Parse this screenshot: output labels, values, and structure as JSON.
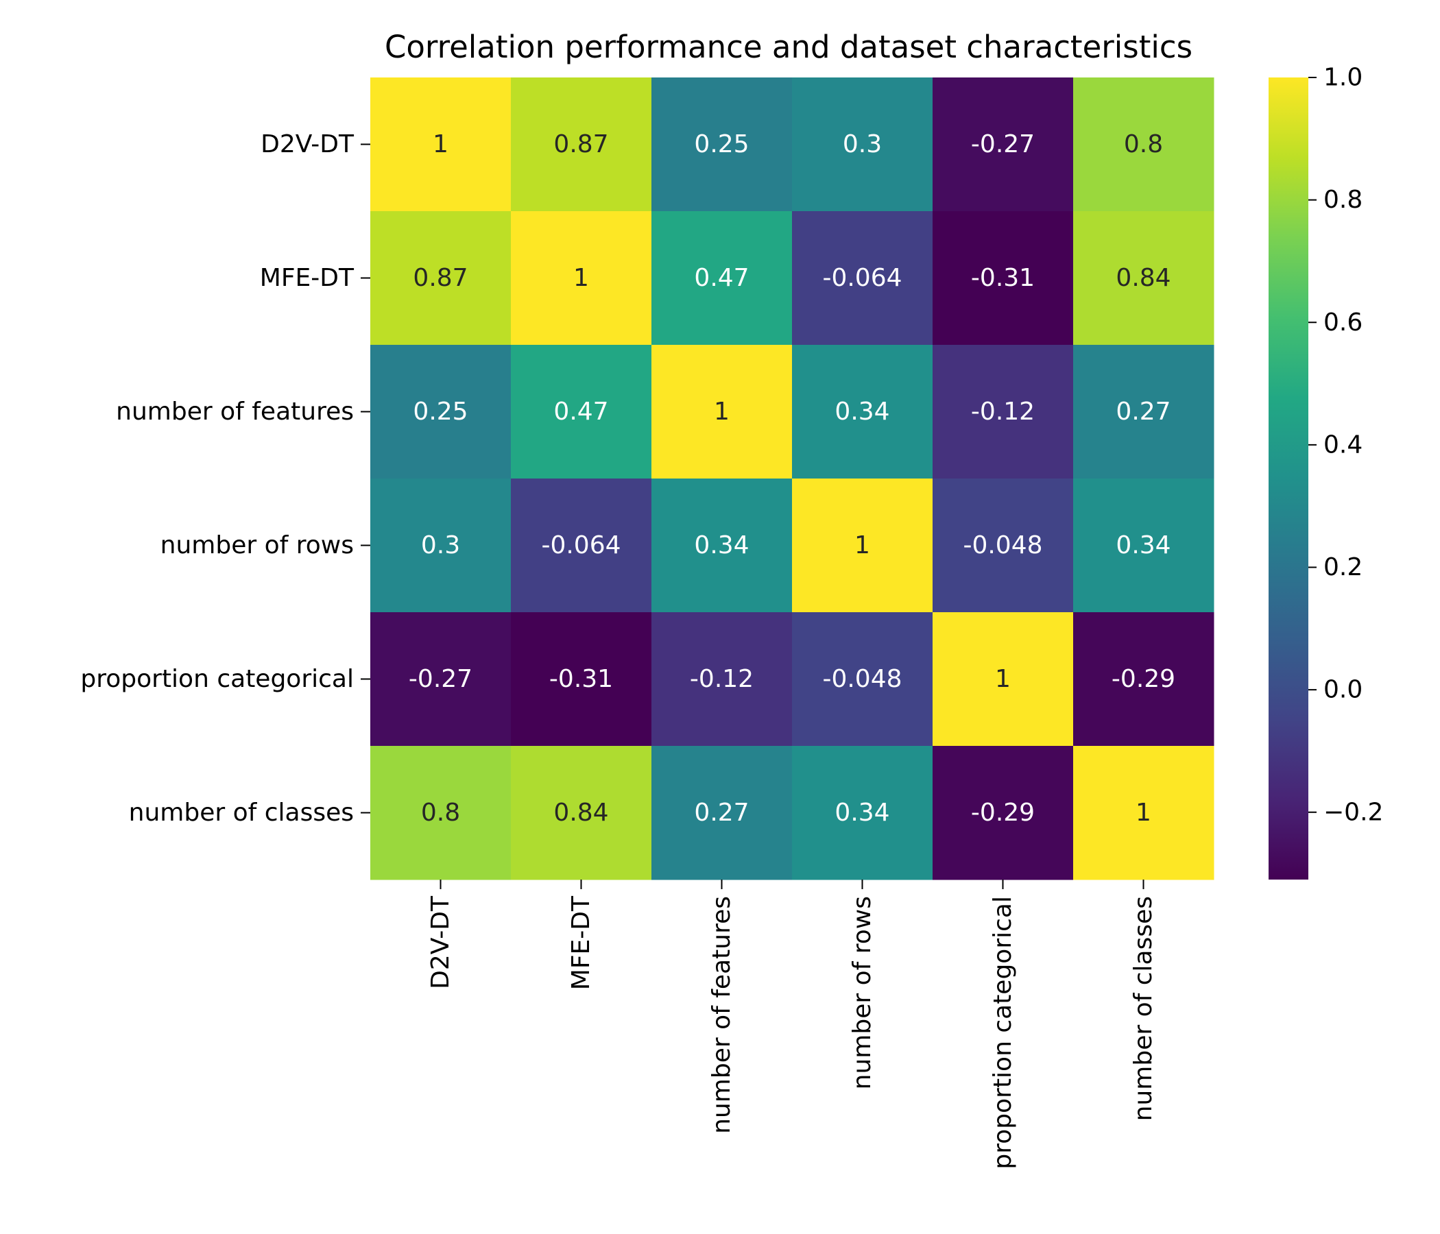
{
  "chart_data": {
    "type": "heatmap",
    "title": "Correlation performance and dataset characteristics",
    "xlabel": "",
    "ylabel": "",
    "rows": [
      "D2V-DT",
      "MFE-DT",
      "number of features",
      "number of rows",
      "proportion categorical",
      "number of classes"
    ],
    "columns": [
      "D2V-DT",
      "MFE-DT",
      "number of features",
      "number of rows",
      "proportion categorical",
      "number of classes"
    ],
    "values": [
      [
        1,
        0.87,
        0.25,
        0.3,
        -0.27,
        0.8
      ],
      [
        0.87,
        1,
        0.47,
        -0.064,
        -0.31,
        0.84
      ],
      [
        0.25,
        0.47,
        1,
        0.34,
        -0.12,
        0.27
      ],
      [
        0.3,
        -0.064,
        0.34,
        1,
        -0.048,
        0.34
      ],
      [
        -0.27,
        -0.31,
        -0.12,
        -0.048,
        1,
        -0.29
      ],
      [
        0.8,
        0.84,
        0.27,
        0.34,
        -0.29,
        1
      ]
    ],
    "colormap": "viridis",
    "vmin": -0.31,
    "vmax": 1.0,
    "annotate": true,
    "colorbar": {
      "ticks": [
        1.0,
        0.8,
        0.6,
        0.4,
        0.2,
        0.0,
        -0.2
      ],
      "tick_labels": [
        "1.0",
        "0.8",
        "0.6",
        "0.4",
        "0.2",
        "0.0",
        "−0.2"
      ]
    }
  }
}
